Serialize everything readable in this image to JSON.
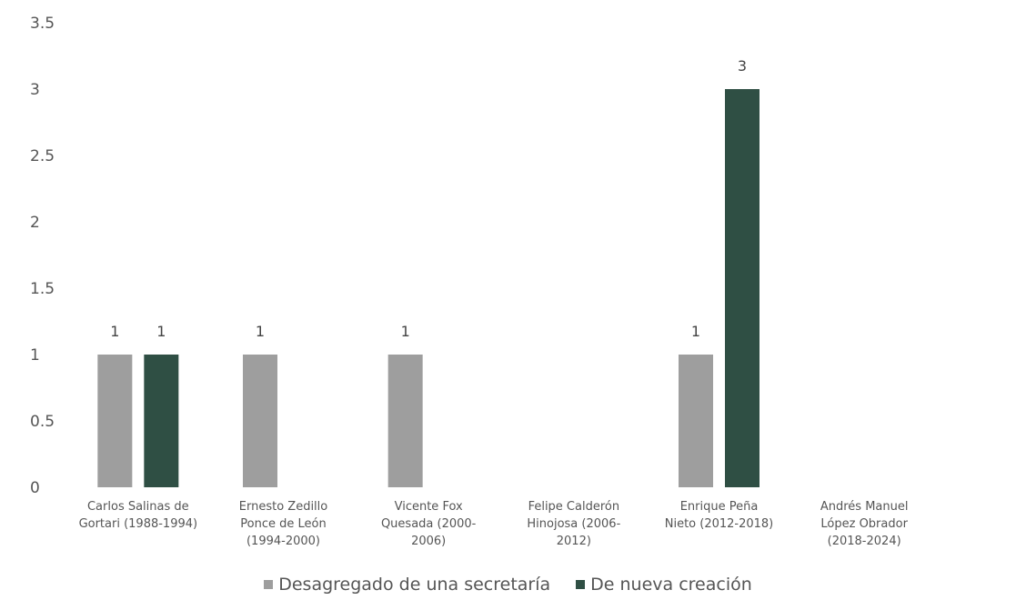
{
  "chart_data": {
    "type": "bar",
    "categories": [
      [
        "Carlos Salinas de",
        "Gortari (1988-1994)"
      ],
      [
        "Ernesto Zedillo",
        "Ponce de León",
        "(1994-2000)"
      ],
      [
        "Vicente Fox",
        "Quesada (2000-",
        "2006)"
      ],
      [
        "Felipe Calderón",
        "Hinojosa (2006-",
        "2012)"
      ],
      [
        "Enrique Peña",
        "Nieto (2012-2018)"
      ],
      [
        "Andrés Manuel",
        "López Obrador",
        "(2018-2024)"
      ]
    ],
    "series": [
      {
        "name": "Desagregado de una secretaría",
        "color": "#9e9e9e",
        "values": [
          1,
          1,
          1,
          0,
          1,
          0
        ]
      },
      {
        "name": "De nueva creación",
        "color": "#2f4f44",
        "values": [
          1,
          0,
          0,
          0,
          3,
          0
        ]
      }
    ],
    "ylim": [
      0,
      3.5
    ],
    "yticks": [
      "0",
      "0.5",
      "1",
      "1.5",
      "2",
      "2.5",
      "3",
      "3.5"
    ],
    "grid": false,
    "legend_position": "bottom"
  }
}
